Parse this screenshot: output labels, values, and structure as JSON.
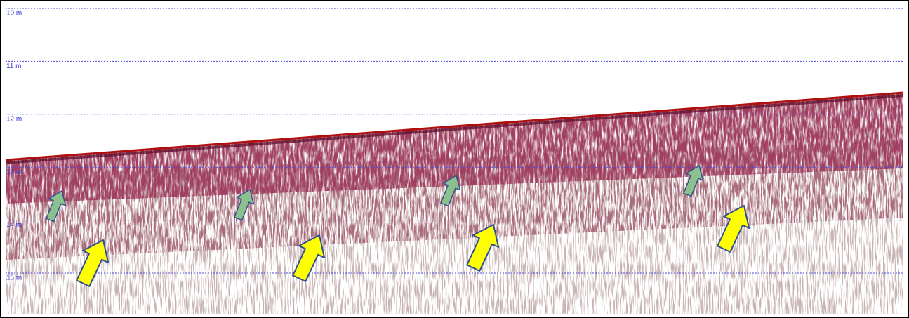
{
  "depth_labels": [
    "10 m",
    "11 m",
    "12 m",
    "13 m",
    "14 m",
    "15 m"
  ]
}
